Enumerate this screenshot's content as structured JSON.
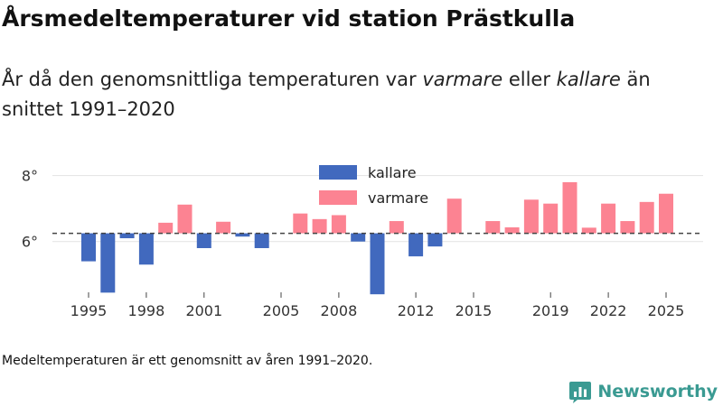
{
  "header": {
    "title": "Årsmedeltemperaturer vid station Prästkulla",
    "subtitle_pre": "År då den genomsnittliga temperaturen var ",
    "subtitle_warm": "varmare",
    "subtitle_mid": " eller ",
    "subtitle_cold": "kallare",
    "subtitle_post": " än snittet 1991–2020"
  },
  "footer": {
    "note": "Medeltemperaturen är ett genomsnitt av åren 1991–2020.",
    "brand": "Newsworthy"
  },
  "colors": {
    "cold": "#4169be",
    "warm": "#fc8392",
    "brand": "#3a9a92"
  },
  "chart_data": {
    "type": "bar",
    "title": "Årsmedeltemperaturer vid station Prästkulla",
    "baseline": 6.25,
    "baseline_style": "dashed",
    "unit": "°",
    "ylim": [
      4.35,
      8.4
    ],
    "yticks": [
      6,
      8
    ],
    "ytick_labels": [
      "6°",
      "8°"
    ],
    "xticks": [
      1995,
      1998,
      2001,
      2005,
      2008,
      2012,
      2015,
      2019,
      2022,
      2025
    ],
    "legend": [
      {
        "key": "cold",
        "label": "kallare"
      },
      {
        "key": "warm",
        "label": "varmare"
      }
    ],
    "legend_position": "top-center",
    "series": [
      {
        "year": 1995,
        "value": 5.4
      },
      {
        "year": 1996,
        "value": 4.45
      },
      {
        "year": 1997,
        "value": 6.1
      },
      {
        "year": 1998,
        "value": 5.3
      },
      {
        "year": 1999,
        "value": 6.57
      },
      {
        "year": 2000,
        "value": 7.12
      },
      {
        "year": 2001,
        "value": 5.8
      },
      {
        "year": 2002,
        "value": 6.6
      },
      {
        "year": 2003,
        "value": 6.15
      },
      {
        "year": 2004,
        "value": 5.8
      },
      {
        "year": 2006,
        "value": 6.85
      },
      {
        "year": 2007,
        "value": 6.68
      },
      {
        "year": 2008,
        "value": 6.8
      },
      {
        "year": 2009,
        "value": 6.0
      },
      {
        "year": 2010,
        "value": 4.4
      },
      {
        "year": 2011,
        "value": 6.62
      },
      {
        "year": 2012,
        "value": 5.55
      },
      {
        "year": 2013,
        "value": 5.85
      },
      {
        "year": 2014,
        "value": 7.3
      },
      {
        "year": 2016,
        "value": 6.62
      },
      {
        "year": 2017,
        "value": 6.43
      },
      {
        "year": 2018,
        "value": 7.27
      },
      {
        "year": 2019,
        "value": 7.15
      },
      {
        "year": 2020,
        "value": 7.8
      },
      {
        "year": 2021,
        "value": 6.42
      },
      {
        "year": 2022,
        "value": 7.15
      },
      {
        "year": 2023,
        "value": 6.62
      },
      {
        "year": 2024,
        "value": 7.2
      },
      {
        "year": 2025,
        "value": 7.45
      }
    ]
  }
}
